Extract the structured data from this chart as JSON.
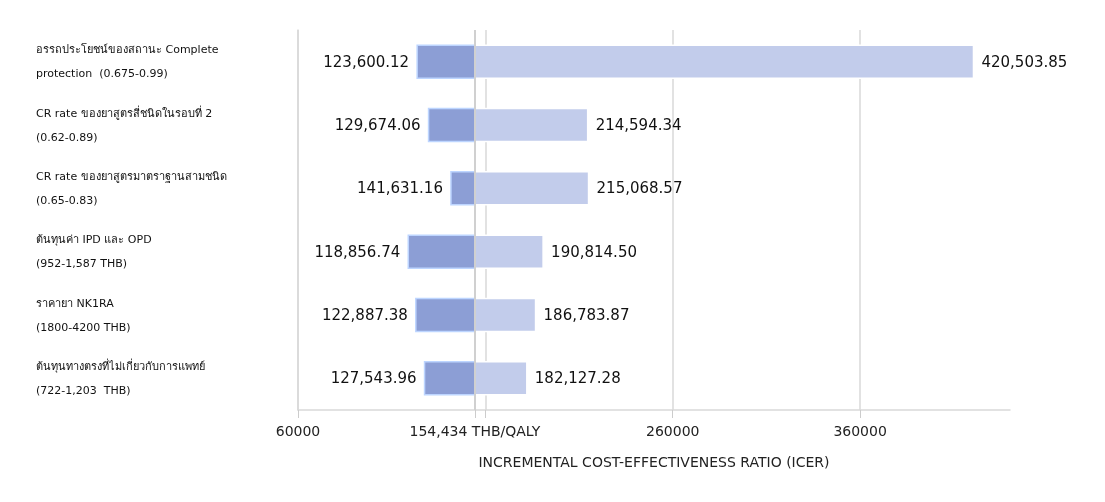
{
  "chart_data": {
    "type": "bar",
    "orientation": "horizontal",
    "xlabel": "INCREMENTAL COST-EFFECTIVENESS RATIO (ICER)",
    "categories": [
      "อรรถประโยชน์ของสถานะ Complete\nprotection  (0.675-0.99)",
      "CR rate ของยาสูตรสี่ชนิดในรอบที่ 2\n(0.62-0.89)",
      "CR rate ของยาสูตรมาตราฐานสามชนิด\n(0.65-0.83)",
      "ต้นทุนค่า IPD และ OPD\n(952-1,587 THB)",
      "ราคายา NK1RA\n(1800-4200 THB)",
      "ต้นทุนทางตรงที่ไม่เกี่ยวกับการแพทย์\n(722-1,203  THB)"
    ],
    "series": [
      {
        "color": "#8c9ed5",
        "base": [
          123600,
          129674,
          141631,
          118857,
          122887,
          127544
        ],
        "values": [
          30834,
          24760,
          12803,
          35577,
          31547,
          26890
        ]
      },
      {
        "color": "#c2cceb",
        "base": [
          154434,
          154434,
          154434,
          154434,
          154434,
          154434
        ],
        "values": [
          266070,
          60160,
          60635,
          36380,
          32350,
          27693
        ]
      }
    ],
    "annotations": [
      {
        "text": "123,600.12",
        "x": 123600.12,
        "y": "อรรถประโยชน์ของสถานะ Complete\nprotection  (0.675-0.99)"
      },
      {
        "text": "129,674.06",
        "x": 129674.06,
        "y": "CR rate ของยาสูตรสี่ชนิดในรอบที่ 2\n(0.62-0.89)"
      },
      {
        "text": "141,631.16",
        "x": 141631.16,
        "y": "CR rate ของยาสูตรมาตราฐานสามชนิด\n(0.65-0.83)"
      },
      {
        "text": "118,856.74",
        "x": 118856.74,
        "y": "ต้นทุนค่า IPD และ OPD\n(952-1,587 THB)"
      },
      {
        "text": "122,887.38",
        "x": 122887.38,
        "y": "ราคายา NK1RA\n(1800-4200 THB)"
      },
      {
        "text": "127,543.96",
        "x": 127543.96,
        "y": "ต้นทุนทางตรงที่ไม่เกี่ยวกับการแพทย์\n(722-1,203  THB)"
      },
      {
        "text": "420,503.85",
        "x": 420503.85,
        "y": "อรรถประโยชน์ของสถานะ Complete\nprotection  (0.675-0.99)"
      },
      {
        "text": "214,594.34",
        "x": 214594.34,
        "y": "CR rate ของยาสูตรสี่ชนิดในรอบที่ 2\n(0.62-0.89)"
      },
      {
        "text": "215,068.57",
        "x": 215068.57,
        "y": "CR rate ของยาสูตรมาตราฐานสามชนิด\n(0.65-0.83)"
      },
      {
        "text": "190,814.50",
        "x": 190814.5,
        "y": "ต้นทุนค่า IPD และ OPD\n(952-1,587 THB)"
      },
      {
        "text": "186,783.87",
        "x": 186783.87,
        "y": "ราคายา NK1RA\n(1800-4200 THB)"
      },
      {
        "text": "182,127.28",
        "x": 182127.28,
        "y": "ต้นทุนทางตรงที่ไม่เกี่ยวกับการแพทย์\n(722-1,203  THB)"
      }
    ],
    "xlim": [
      60000,
      440000
    ],
    "xticks": [
      60000,
      {
        "value": 154434,
        "label": "154,434 THB/QALY"
      },
      {
        "value": 160000,
        "label": null
      },
      260000,
      360000
    ],
    "ref_lines": [
      {
        "axis": "x",
        "value": 154434,
        "color": "#d0d0d0"
      }
    ],
    "grid": "x"
  }
}
